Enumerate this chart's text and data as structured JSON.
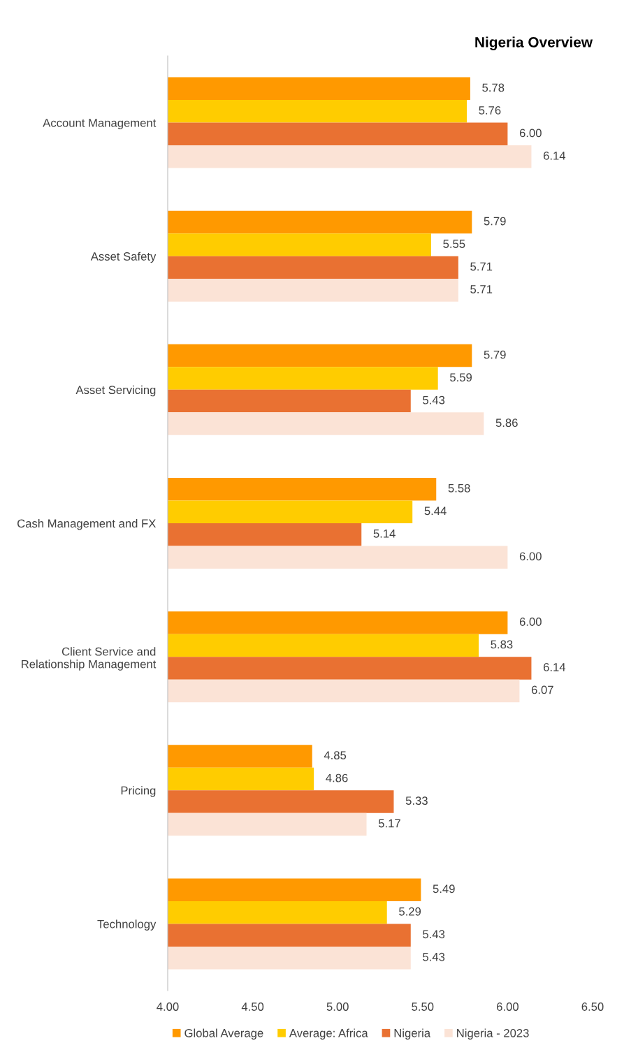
{
  "chart_data": {
    "type": "bar",
    "orientation": "horizontal",
    "title": "Nigeria Overview",
    "categories": [
      "Account Management",
      "Asset Safety",
      "Asset Servicing",
      "Cash Management and FX",
      "Client Service and\nRelationship Management",
      "Pricing",
      "Technology"
    ],
    "series": [
      {
        "name": "Global Average",
        "color": "#ff9900",
        "values": [
          5.78,
          5.79,
          5.79,
          5.58,
          6.0,
          4.85,
          5.49
        ],
        "value_labels": [
          "5.78",
          "5.79",
          "5.79",
          "5.58",
          "6.00",
          "4.85",
          "5.49"
        ]
      },
      {
        "name": "Average: Africa",
        "color": "#ffcc00",
        "values": [
          5.76,
          5.55,
          5.59,
          5.44,
          5.83,
          4.86,
          5.29
        ],
        "value_labels": [
          "5.76",
          "5.55",
          "5.59",
          "5.44",
          "5.83",
          "4.86",
          "5.29"
        ]
      },
      {
        "name": "Nigeria",
        "color": "#e97132",
        "values": [
          6.0,
          5.71,
          5.43,
          5.14,
          6.14,
          5.33,
          5.43
        ],
        "value_labels": [
          "6.00",
          "5.71",
          "5.43",
          "5.14",
          "6.14",
          "5.33",
          "5.43"
        ]
      },
      {
        "name": "Nigeria - 2023",
        "color": "#fbe3d6",
        "values": [
          6.14,
          5.71,
          5.86,
          6.0,
          6.07,
          5.17,
          5.43
        ],
        "value_labels": [
          "6.14",
          "5.71",
          "5.86",
          "6.00",
          "6.07",
          "5.17",
          "5.43"
        ]
      }
    ],
    "xlim": [
      4.0,
      6.5
    ],
    "xticks": [
      {
        "value": 4.0,
        "label": "4.00"
      },
      {
        "value": 4.5,
        "label": "4.50"
      },
      {
        "value": 5.0,
        "label": "5.00"
      },
      {
        "value": 5.5,
        "label": "5.50"
      },
      {
        "value": 6.0,
        "label": "6.00"
      },
      {
        "value": 6.5,
        "label": "6.50"
      }
    ],
    "grid": false,
    "legend": "bottom"
  }
}
